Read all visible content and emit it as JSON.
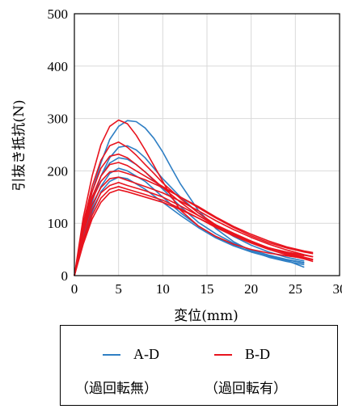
{
  "chart_data": {
    "type": "line",
    "title": "",
    "xlabel": "変位(mm)",
    "ylabel": "引抜き抵抗(N)",
    "xlim": [
      0,
      30
    ],
    "ylim": [
      0,
      500
    ],
    "xticks": [
      "0",
      "5",
      "10",
      "15",
      "20",
      "25",
      "30"
    ],
    "yticks": [
      "0",
      "100",
      "200",
      "300",
      "400",
      "500"
    ],
    "grid": true,
    "legend_position": "below",
    "colors": {
      "A-D": "#2f7fc4",
      "B-D": "#e8141e"
    },
    "series": [
      {
        "name": "A-D",
        "group": "A-D",
        "x": [
          0,
          1,
          2,
          3,
          4,
          5,
          6,
          7,
          8,
          9,
          10,
          11,
          12,
          14,
          16,
          18,
          20,
          22,
          24,
          26
        ],
        "y": [
          0,
          90,
          160,
          215,
          260,
          285,
          296,
          294,
          282,
          262,
          236,
          205,
          175,
          125,
          90,
          65,
          47,
          35,
          27,
          21
        ]
      },
      {
        "group": "A-D",
        "x": [
          0,
          1,
          2,
          3,
          4,
          5,
          6,
          7,
          8,
          9,
          10,
          12,
          14,
          16,
          18,
          20,
          22,
          24,
          26
        ],
        "y": [
          0,
          75,
          140,
          190,
          225,
          245,
          248,
          240,
          225,
          205,
          185,
          150,
          120,
          95,
          75,
          58,
          45,
          35,
          28
        ]
      },
      {
        "group": "A-D",
        "x": [
          0,
          1,
          2,
          3,
          4,
          5,
          6,
          7,
          8,
          10,
          12,
          14,
          16,
          18,
          20,
          22,
          24,
          26
        ],
        "y": [
          0,
          80,
          145,
          190,
          215,
          225,
          222,
          212,
          198,
          165,
          132,
          102,
          80,
          62,
          49,
          39,
          31,
          25
        ]
      },
      {
        "group": "A-D",
        "x": [
          0,
          1,
          2,
          3,
          4,
          5,
          6,
          8,
          10,
          12,
          14,
          16,
          18,
          20,
          22,
          24,
          26
        ],
        "y": [
          0,
          70,
          130,
          170,
          195,
          205,
          200,
          180,
          150,
          120,
          95,
          74,
          58,
          46,
          37,
          30,
          24
        ]
      },
      {
        "group": "A-D",
        "x": [
          0,
          1,
          2,
          3,
          4,
          5,
          6,
          8,
          10,
          12,
          14,
          16,
          18,
          20,
          22,
          24,
          26
        ],
        "y": [
          0,
          65,
          120,
          160,
          180,
          188,
          185,
          165,
          140,
          115,
          92,
          72,
          57,
          45,
          36,
          29,
          16
        ]
      },
      {
        "name": "B-D",
        "group": "B-D",
        "x": [
          0,
          1,
          2,
          3,
          4,
          5,
          6,
          7,
          8,
          9,
          10,
          11,
          12,
          14,
          16,
          18,
          20,
          22,
          24,
          26
        ],
        "y": [
          0,
          110,
          190,
          250,
          285,
          297,
          290,
          268,
          240,
          210,
          180,
          150,
          125,
          95,
          75,
          60,
          50,
          43,
          38,
          33
        ]
      },
      {
        "group": "B-D",
        "x": [
          0,
          1,
          2,
          3,
          4,
          5,
          6,
          7,
          8,
          9,
          10,
          12,
          14,
          16,
          18,
          20,
          22,
          24,
          26
        ],
        "y": [
          0,
          100,
          170,
          220,
          248,
          255,
          245,
          230,
          212,
          195,
          177,
          147,
          120,
          97,
          78,
          63,
          52,
          44,
          38
        ]
      },
      {
        "group": "B-D",
        "x": [
          0,
          1,
          2,
          3,
          4,
          5,
          6,
          7,
          8,
          10,
          12,
          14,
          16,
          18,
          20,
          22,
          24,
          26,
          27
        ],
        "y": [
          0,
          95,
          160,
          205,
          228,
          232,
          225,
          212,
          198,
          168,
          140,
          115,
          95,
          78,
          64,
          53,
          45,
          39,
          36
        ]
      },
      {
        "group": "B-D",
        "x": [
          0,
          1,
          2,
          3,
          4,
          5,
          6,
          7,
          8,
          10,
          12,
          14,
          16,
          18,
          20,
          22,
          24,
          26,
          27
        ],
        "y": [
          0,
          90,
          150,
          190,
          212,
          216,
          210,
          200,
          190,
          170,
          150,
          130,
          110,
          92,
          76,
          63,
          53,
          45,
          42
        ]
      },
      {
        "group": "B-D",
        "x": [
          0,
          1,
          2,
          3,
          4,
          5,
          6,
          8,
          10,
          12,
          14,
          16,
          18,
          20,
          22,
          24,
          26,
          27
        ],
        "y": [
          0,
          85,
          145,
          180,
          198,
          200,
          195,
          183,
          168,
          150,
          132,
          112,
          94,
          79,
          66,
          55,
          47,
          44
        ]
      },
      {
        "group": "B-D",
        "x": [
          0,
          1,
          2,
          3,
          4,
          5,
          6,
          8,
          10,
          12,
          14,
          16,
          18,
          20,
          22,
          24,
          26,
          27
        ],
        "y": [
          0,
          80,
          135,
          168,
          185,
          188,
          182,
          170,
          158,
          142,
          124,
          105,
          88,
          73,
          60,
          49,
          40,
          36
        ]
      },
      {
        "group": "B-D",
        "x": [
          0,
          1,
          2,
          3,
          4,
          5,
          6,
          8,
          10,
          12,
          14,
          16,
          18,
          20,
          22,
          24,
          26,
          27
        ],
        "y": [
          0,
          70,
          125,
          158,
          172,
          178,
          172,
          162,
          150,
          133,
          115,
          97,
          81,
          66,
          53,
          42,
          34,
          30
        ]
      },
      {
        "group": "B-D",
        "x": [
          0,
          1,
          2,
          3,
          4,
          5,
          6,
          8,
          10,
          12,
          14,
          16,
          18,
          20,
          22,
          24,
          26,
          27
        ],
        "y": [
          0,
          65,
          115,
          148,
          165,
          170,
          165,
          155,
          144,
          128,
          110,
          92,
          76,
          62,
          50,
          40,
          32,
          27
        ]
      },
      {
        "group": "B-D",
        "x": [
          0,
          1,
          2,
          3,
          4,
          5,
          6,
          8,
          10,
          12,
          14,
          16,
          18,
          20,
          22,
          24,
          26,
          27
        ],
        "y": [
          0,
          60,
          108,
          140,
          158,
          164,
          160,
          150,
          140,
          126,
          110,
          94,
          79,
          65,
          53,
          43,
          35,
          31
        ]
      }
    ]
  },
  "legend": {
    "entries": [
      {
        "label": "A-D",
        "note": "（過回転無）",
        "color": "#2f7fc4"
      },
      {
        "label": "B-D",
        "note": "（過回転有）",
        "color": "#e8141e"
      }
    ]
  }
}
